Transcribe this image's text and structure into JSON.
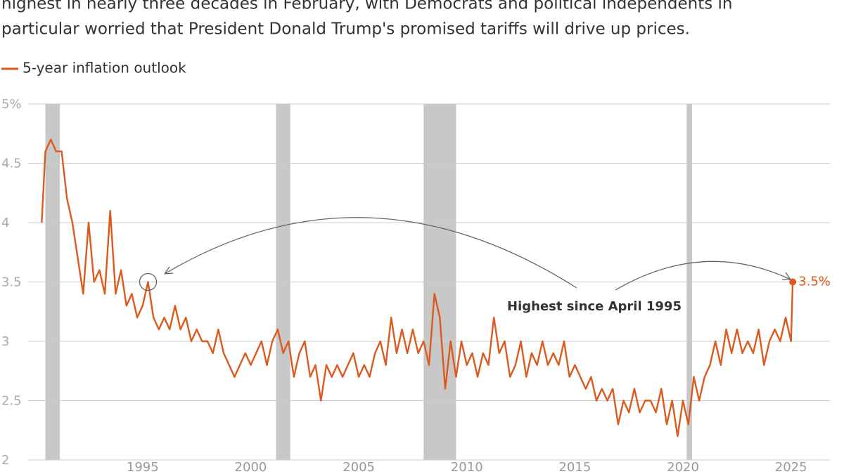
{
  "chart_data": {
    "type": "line",
    "subtitle_lines": [
      "highest in nearly three decades in February, with Democrats and political independents in",
      "particular worried that President Donald Trump's promised tariffs will drive up prices."
    ],
    "annotation": "Highest since April 1995",
    "series": [
      {
        "name": "5-year inflation outlook",
        "color": "#dc5a1e",
        "x": [
          1990.33,
          1990.5,
          1990.75,
          1991,
          1991.25,
          1991.5,
          1991.75,
          1992,
          1992.25,
          1992.5,
          1992.75,
          1993,
          1993.25,
          1993.5,
          1993.75,
          1994,
          1994.25,
          1994.5,
          1994.75,
          1995,
          1995.25,
          1995.5,
          1995.75,
          1996,
          1996.25,
          1996.5,
          1996.75,
          1997,
          1997.25,
          1997.5,
          1997.75,
          1998,
          1998.25,
          1998.5,
          1998.75,
          1999,
          1999.25,
          1999.5,
          1999.75,
          2000,
          2000.25,
          2000.5,
          2000.75,
          2001,
          2001.25,
          2001.5,
          2001.75,
          2002,
          2002.25,
          2002.5,
          2002.75,
          2003,
          2003.25,
          2003.5,
          2003.75,
          2004,
          2004.25,
          2004.5,
          2004.75,
          2005,
          2005.25,
          2005.5,
          2005.75,
          2006,
          2006.25,
          2006.5,
          2006.75,
          2007,
          2007.25,
          2007.5,
          2007.75,
          2008,
          2008.25,
          2008.5,
          2008.75,
          2009,
          2009.25,
          2009.5,
          2009.75,
          2010,
          2010.25,
          2010.5,
          2010.75,
          2011,
          2011.25,
          2011.5,
          2011.75,
          2012,
          2012.25,
          2012.5,
          2012.75,
          2013,
          2013.25,
          2013.5,
          2013.75,
          2014,
          2014.25,
          2014.5,
          2014.75,
          2015,
          2015.25,
          2015.5,
          2015.75,
          2016,
          2016.25,
          2016.5,
          2016.75,
          2017,
          2017.25,
          2017.5,
          2017.75,
          2018,
          2018.25,
          2018.5,
          2018.75,
          2019,
          2019.25,
          2019.5,
          2019.75,
          2020,
          2020.25,
          2020.5,
          2020.75,
          2021,
          2021.25,
          2021.5,
          2021.75,
          2022,
          2022.25,
          2022.5,
          2022.75,
          2023,
          2023.25,
          2023.5,
          2023.75,
          2024,
          2024.25,
          2024.5,
          2024.75,
          2025,
          2025.08
        ],
        "values": [
          4.0,
          4.6,
          4.7,
          4.6,
          4.6,
          4.2,
          4.0,
          3.7,
          3.4,
          4.0,
          3.5,
          3.6,
          3.4,
          4.1,
          3.4,
          3.6,
          3.3,
          3.4,
          3.2,
          3.3,
          3.5,
          3.2,
          3.1,
          3.2,
          3.1,
          3.3,
          3.1,
          3.2,
          3.0,
          3.1,
          3.0,
          3.0,
          2.9,
          3.1,
          2.9,
          2.8,
          2.7,
          2.8,
          2.9,
          2.8,
          2.9,
          3.0,
          2.8,
          3.0,
          3.1,
          2.9,
          3.0,
          2.7,
          2.9,
          3.0,
          2.7,
          2.8,
          2.5,
          2.8,
          2.7,
          2.8,
          2.7,
          2.8,
          2.9,
          2.7,
          2.8,
          2.7,
          2.9,
          3.0,
          2.8,
          3.2,
          2.9,
          3.1,
          2.9,
          3.1,
          2.9,
          3.0,
          2.8,
          3.4,
          3.2,
          2.6,
          3.0,
          2.7,
          3.0,
          2.8,
          2.9,
          2.7,
          2.9,
          2.8,
          3.2,
          2.9,
          3.0,
          2.7,
          2.8,
          3.0,
          2.7,
          2.9,
          2.8,
          3.0,
          2.8,
          2.9,
          2.8,
          3.0,
          2.7,
          2.8,
          2.7,
          2.6,
          2.7,
          2.5,
          2.6,
          2.5,
          2.6,
          2.3,
          2.5,
          2.4,
          2.6,
          2.4,
          2.5,
          2.5,
          2.4,
          2.6,
          2.3,
          2.5,
          2.2,
          2.5,
          2.3,
          2.7,
          2.5,
          2.7,
          2.8,
          3.0,
          2.8,
          3.1,
          2.9,
          3.1,
          2.9,
          3.0,
          2.9,
          3.1,
          2.8,
          3.0,
          3.1,
          3.0,
          3.2,
          3.0,
          3.5
        ]
      }
    ],
    "last_label": {
      "value": 3.5,
      "label": "3.5%"
    },
    "highlight_index": 20,
    "recessions": [
      [
        1990.5,
        1991.17
      ],
      [
        2001.17,
        2001.83
      ],
      [
        2008.0,
        2009.5
      ],
      [
        2020.17,
        2020.42
      ]
    ],
    "xlim": [
      1988.4,
      2026.8
    ],
    "xticks": [
      1995,
      2000,
      2005,
      2010,
      2015,
      2020,
      2025
    ],
    "ylim": [
      2,
      5
    ],
    "yticks": [
      2,
      2.5,
      3,
      3.5,
      4,
      4.5,
      {
        "value": 5,
        "label": "5%"
      }
    ],
    "grid": true
  }
}
